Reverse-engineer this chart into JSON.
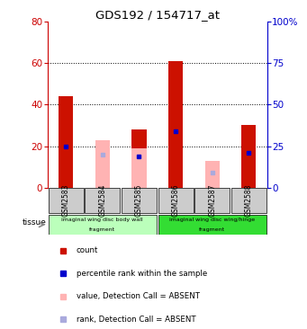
{
  "title": "GDS192 / 154717_at",
  "samples": [
    "GSM2583",
    "GSM2584",
    "GSM2585",
    "GSM2586",
    "GSM2587",
    "GSM2588"
  ],
  "red_bars": [
    44,
    0,
    28,
    61,
    0,
    30
  ],
  "pink_bars": [
    0,
    23,
    19,
    0,
    13,
    0
  ],
  "blue_markers": [
    25,
    0,
    19,
    34,
    0,
    21
  ],
  "light_blue_markers": [
    0,
    20,
    0,
    0,
    9,
    0
  ],
  "ylim_left": [
    0,
    80
  ],
  "ylim_right": [
    0,
    100
  ],
  "yticks_left": [
    0,
    20,
    40,
    60,
    80
  ],
  "yticks_right": [
    0,
    25,
    50,
    75,
    100
  ],
  "ytick_labels_right": [
    "0",
    "25",
    "50",
    "75",
    "100%"
  ],
  "group1_label_top": "imaginal wing disc body wall",
  "group1_label_bot": "fragment",
  "group2_label_top": "imaginal wing disc wing/hinge",
  "group2_label_bot": "fragment",
  "group1_color": "#bbffbb",
  "group2_color": "#33dd33",
  "tissue_label": "tissue",
  "bar_width": 0.4,
  "bar_color_red": "#cc1100",
  "bar_color_pink": "#ffb3b3",
  "marker_color_blue": "#0000cc",
  "marker_color_lightblue": "#aaaadd",
  "bg_color": "#ffffff",
  "tick_color_left": "#cc0000",
  "tick_color_right": "#0000cc",
  "sample_bg": "#cccccc",
  "leg_colors": [
    "#cc1100",
    "#0000cc",
    "#ffb3b3",
    "#aaaadd"
  ],
  "leg_labels": [
    "count",
    "percentile rank within the sample",
    "value, Detection Call = ABSENT",
    "rank, Detection Call = ABSENT"
  ]
}
